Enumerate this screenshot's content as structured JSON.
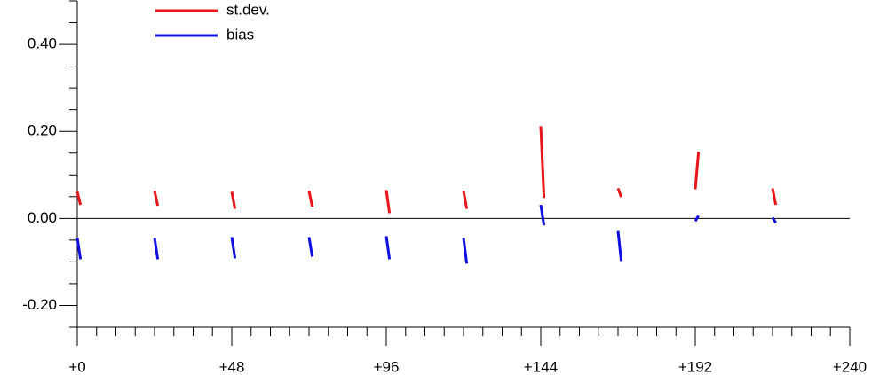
{
  "chart_data": {
    "type": "line",
    "x": [
      0,
      1,
      2,
      24,
      25,
      26,
      48,
      49,
      50,
      72,
      73,
      74,
      96,
      97,
      98,
      120,
      121,
      122,
      144,
      145,
      146,
      168,
      169,
      170,
      192,
      193,
      194,
      216,
      217
    ],
    "series": [
      {
        "name": "st.dev.",
        "color": "#e8161b",
        "values": [
          0.061,
          0.031,
          null,
          0.063,
          0.029,
          null,
          0.061,
          0.022,
          null,
          0.063,
          0.027,
          null,
          0.065,
          0.012,
          null,
          0.063,
          0.022,
          null,
          0.212,
          0.047,
          null,
          0.069,
          0.049,
          null,
          0.067,
          0.153,
          null,
          0.069,
          0.031
        ]
      },
      {
        "name": "bias",
        "color": "#1010e0",
        "values": [
          -0.045,
          -0.094,
          null,
          -0.045,
          -0.094,
          null,
          -0.043,
          -0.092,
          null,
          -0.043,
          -0.088,
          null,
          -0.041,
          -0.094,
          null,
          -0.045,
          -0.104,
          null,
          0.031,
          -0.016,
          null,
          -0.029,
          -0.098,
          null,
          -0.006,
          0.006,
          null,
          0.002,
          -0.01
        ]
      }
    ],
    "xlim": [
      0,
      240
    ],
    "ylim": [
      -0.25,
      0.5
    ],
    "xticks": [
      {
        "value": 0,
        "label": "+0"
      },
      {
        "value": 48,
        "label": "+48"
      },
      {
        "value": 96,
        "label": "+96"
      },
      {
        "value": 144,
        "label": "+144"
      },
      {
        "value": 192,
        "label": "+192"
      },
      {
        "value": 240,
        "label": "+240"
      }
    ],
    "xminorticks": [
      6,
      12,
      18,
      24,
      30,
      36,
      42,
      54,
      60,
      66,
      72,
      78,
      84,
      90,
      102,
      108,
      114,
      120,
      126,
      132,
      138,
      150,
      156,
      162,
      168,
      174,
      180,
      186,
      198,
      204,
      210,
      216,
      222,
      228,
      234
    ],
    "yticks": [
      {
        "value": -0.2,
        "label": "-0.20"
      },
      {
        "value": 0,
        "label": "0.00"
      },
      {
        "value": 0.2,
        "label": "0.20"
      },
      {
        "value": 0.4,
        "label": "0.40"
      }
    ],
    "yminorticks": [
      -0.25,
      -0.15,
      -0.1,
      -0.05,
      0.05,
      0.1,
      0.15,
      0.25,
      0.3,
      0.35,
      0.45,
      0.5
    ],
    "hlines": [
      0
    ],
    "legend": "top-left"
  }
}
